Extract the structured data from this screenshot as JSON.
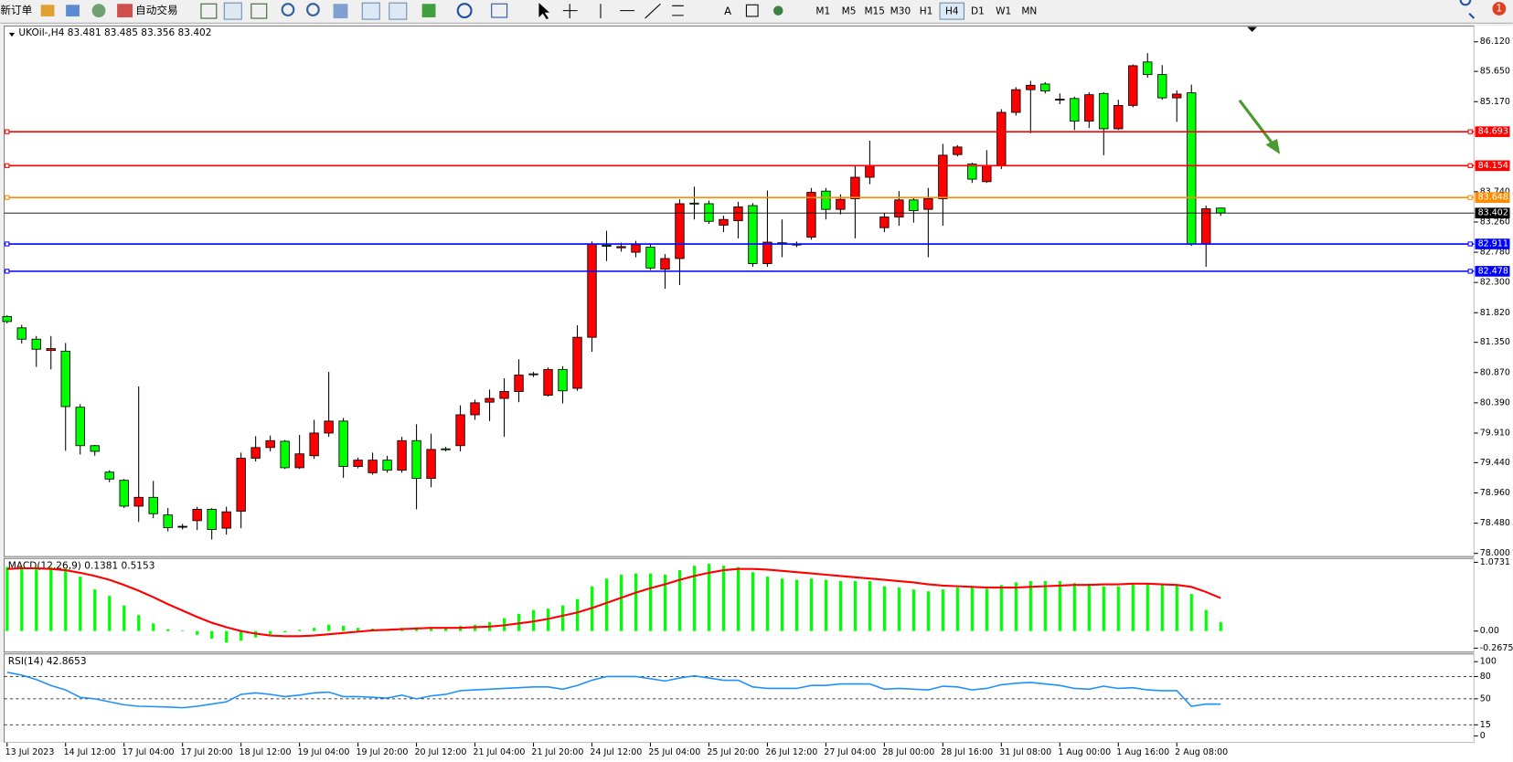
{
  "toolbar": {
    "new_order": "新订单",
    "auto_trading": "自动交易",
    "text_tool": "A",
    "timeframes": [
      "M1",
      "M5",
      "M15",
      "M30",
      "H1",
      "H4",
      "D1",
      "W1",
      "MN"
    ],
    "active_timeframe": "H4",
    "notifications": "1"
  },
  "chart_data": [
    {
      "type": "candlestick",
      "title": "UKOil-,H4  83.481 83.485 83.356 83.402",
      "categories": [
        "13 Jul 2023",
        null,
        null,
        null,
        "14 Jul 12:00",
        null,
        null,
        null,
        "17 Jul 04:00",
        null,
        null,
        null,
        "17 Jul 20:00",
        null,
        null,
        null,
        "18 Jul 12:00",
        null,
        null,
        null,
        "19 Jul 04:00",
        null,
        null,
        null,
        "19 Jul 20:00",
        null,
        null,
        null,
        "20 Jul 12:00",
        null,
        null,
        null,
        "21 Jul 04:00",
        null,
        null,
        null,
        "21 Jul 20:00",
        null,
        null,
        null,
        "24 Jul 12:00",
        null,
        null,
        null,
        "25 Jul 04:00",
        null,
        null,
        null,
        "25 Jul 20:00",
        null,
        null,
        null,
        "26 Jul 12:00",
        null,
        null,
        null,
        "27 Jul 04:00",
        null,
        null,
        null,
        "28 Jul 00:00",
        null,
        null,
        null,
        "28 Jul 16:00",
        null,
        null,
        null,
        "31 Jul 08:00",
        null,
        null,
        null,
        "1 Aug 00:00",
        null,
        null,
        null,
        "1 Aug 16:00",
        null,
        null,
        null,
        "2 Aug 08:00",
        null,
        null,
        null
      ],
      "open": [
        81.76,
        81.58,
        81.4,
        81.22,
        81.21,
        80.32,
        79.71,
        79.29,
        79.16,
        78.75,
        78.89,
        78.61,
        78.43,
        78.52,
        78.7,
        78.4,
        78.67,
        79.51,
        79.68,
        79.78,
        79.36,
        79.55,
        79.91,
        80.1,
        79.38,
        79.28,
        79.48,
        79.32,
        79.79,
        79.19,
        79.66,
        79.71,
        80.2,
        80.4,
        80.46,
        80.57,
        80.85,
        80.51,
        80.92,
        80.62,
        81.43,
        82.89,
        82.85,
        82.78,
        82.86,
        82.51,
        82.68,
        83.56,
        83.55,
        83.21,
        83.28,
        83.52,
        82.6,
        82.93,
        82.91,
        83.02,
        83.75,
        83.46,
        83.63,
        83.97,
        83.17,
        83.34,
        83.61,
        83.46,
        83.63,
        84.33,
        84.18,
        83.9,
        84.16,
        85.0,
        85.36,
        85.45,
        85.2,
        85.22,
        84.86,
        85.3,
        84.74,
        85.11,
        85.8,
        85.6,
        85.23,
        85.31,
        82.91,
        83.481
      ],
      "high": [
        81.78,
        81.63,
        81.45,
        81.45,
        81.34,
        80.37,
        79.72,
        79.32,
        79.18,
        80.65,
        79.15,
        78.72,
        78.47,
        78.74,
        78.72,
        78.74,
        79.6,
        79.86,
        79.87,
        79.8,
        79.88,
        80.12,
        80.88,
        80.15,
        79.52,
        79.6,
        79.55,
        79.85,
        80.05,
        79.9,
        79.69,
        80.35,
        80.44,
        80.6,
        80.78,
        81.08,
        80.88,
        80.95,
        80.97,
        81.62,
        82.95,
        83.12,
        82.93,
        82.96,
        82.91,
        82.75,
        83.62,
        83.82,
        83.6,
        83.36,
        83.58,
        83.56,
        83.76,
        83.3,
        82.95,
        83.8,
        83.8,
        83.7,
        84.15,
        84.55,
        83.4,
        83.75,
        83.65,
        83.8,
        84.5,
        84.48,
        84.2,
        84.4,
        85.05,
        85.4,
        85.5,
        85.48,
        85.3,
        85.25,
        85.32,
        85.32,
        85.2,
        85.76,
        85.94,
        85.75,
        85.35,
        85.44,
        83.52,
        83.485
      ],
      "low": [
        81.65,
        81.33,
        80.96,
        80.92,
        79.63,
        79.57,
        79.55,
        79.13,
        78.72,
        78.5,
        78.56,
        78.35,
        78.38,
        78.37,
        78.22,
        78.3,
        78.4,
        79.46,
        79.62,
        79.34,
        79.34,
        79.5,
        79.85,
        79.2,
        79.35,
        79.25,
        79.28,
        79.28,
        78.7,
        79.05,
        79.62,
        79.62,
        80.12,
        80.1,
        79.85,
        80.4,
        80.8,
        80.49,
        80.38,
        80.58,
        81.2,
        82.64,
        82.79,
        82.7,
        82.5,
        82.2,
        82.26,
        83.3,
        83.23,
        83.1,
        83.0,
        82.55,
        82.55,
        82.7,
        82.86,
        82.98,
        83.3,
        83.38,
        83.0,
        83.86,
        83.1,
        83.2,
        83.25,
        82.7,
        83.2,
        84.3,
        83.88,
        83.88,
        84.1,
        84.95,
        84.67,
        85.3,
        85.13,
        84.72,
        84.75,
        84.32,
        84.72,
        85.08,
        85.55,
        85.2,
        84.85,
        82.88,
        82.55,
        83.356
      ],
      "close": [
        81.68,
        81.4,
        81.24,
        81.25,
        80.33,
        79.71,
        79.62,
        79.18,
        78.75,
        78.89,
        78.63,
        78.41,
        78.43,
        78.7,
        78.38,
        78.66,
        79.51,
        79.68,
        79.79,
        79.36,
        79.58,
        79.91,
        80.1,
        79.38,
        79.48,
        79.48,
        79.32,
        79.79,
        79.19,
        79.65,
        79.65,
        80.2,
        80.39,
        80.46,
        80.57,
        80.83,
        80.84,
        80.92,
        80.58,
        81.43,
        82.91,
        82.88,
        82.87,
        82.9,
        82.53,
        82.68,
        83.55,
        83.55,
        83.27,
        83.3,
        83.5,
        82.6,
        82.94,
        82.92,
        82.9,
        83.73,
        83.46,
        83.62,
        83.97,
        84.16,
        83.34,
        83.61,
        83.44,
        83.63,
        84.32,
        84.45,
        83.94,
        84.16,
        85.0,
        85.36,
        85.43,
        85.34,
        85.21,
        84.86,
        85.28,
        84.74,
        85.11,
        85.74,
        85.6,
        85.23,
        85.29,
        82.91,
        83.47,
        83.402
      ],
      "up_color": "#ff0000",
      "down_color": "#00ff00",
      "ylim": [
        77.95,
        86.37
      ],
      "yticks": [
        {
          "value": 86.12,
          "label": "86.120"
        },
        {
          "value": 85.65,
          "label": "85.650"
        },
        {
          "value": 85.17,
          "label": "85.170"
        },
        {
          "value": 83.74,
          "label": "83.740"
        },
        {
          "value": 83.26,
          "label": "83.260"
        },
        {
          "value": 82.78,
          "label": "82.780"
        },
        {
          "value": 82.3,
          "label": "82.300"
        },
        {
          "value": 81.82,
          "label": "81.820"
        },
        {
          "value": 81.35,
          "label": "81.350"
        },
        {
          "value": 80.87,
          "label": "80.870"
        },
        {
          "value": 80.39,
          "label": "80.390"
        },
        {
          "value": 79.91,
          "label": "79.910"
        },
        {
          "value": 79.44,
          "label": "79.440"
        },
        {
          "value": 78.96,
          "label": "78.960"
        },
        {
          "value": 78.48,
          "label": "78.480"
        },
        {
          "value": 78,
          "label": "78.000"
        }
      ],
      "hlines": [
        {
          "value": 84.693,
          "color": "#ff0000"
        },
        {
          "value": 84.154,
          "color": "#ff0000"
        },
        {
          "value": 83.648,
          "color": "#ff8c00"
        },
        {
          "value": 82.911,
          "color": "#0000ff"
        },
        {
          "value": 82.478,
          "color": "#0000ff"
        }
      ],
      "current": {
        "value": 83.402,
        "color": "#000000"
      }
    },
    {
      "type": "macd",
      "title": "MACD(12,26,9) 0.1381 0.5153",
      "histogram": {
        "color": "#00ff00",
        "values": [
          1.0,
          1.0,
          1.0,
          1.0,
          0.98,
          0.85,
          0.65,
          0.55,
          0.4,
          0.25,
          0.12,
          0.03,
          0.01,
          -0.06,
          -0.12,
          -0.18,
          -0.15,
          -0.1,
          -0.05,
          -0.02,
          0.02,
          0.05,
          0.1,
          0.08,
          0.05,
          0.04,
          0.03,
          0.05,
          0.06,
          0.05,
          0.06,
          0.08,
          0.1,
          0.14,
          0.2,
          0.27,
          0.33,
          0.35,
          0.4,
          0.5,
          0.7,
          0.82,
          0.88,
          0.9,
          0.9,
          0.88,
          0.95,
          1.02,
          1.05,
          1.02,
          1.0,
          0.92,
          0.85,
          0.82,
          0.8,
          0.82,
          0.8,
          0.78,
          0.78,
          0.78,
          0.7,
          0.68,
          0.65,
          0.62,
          0.65,
          0.68,
          0.68,
          0.66,
          0.72,
          0.76,
          0.78,
          0.78,
          0.78,
          0.75,
          0.74,
          0.7,
          0.7,
          0.74,
          0.75,
          0.74,
          0.72,
          0.58,
          0.33,
          0.1381
        ]
      },
      "signal": {
        "color": "#ff0000",
        "values": [
          0.97,
          0.98,
          0.98,
          0.97,
          0.95,
          0.91,
          0.86,
          0.8,
          0.72,
          0.63,
          0.53,
          0.42,
          0.32,
          0.22,
          0.13,
          0.06,
          0.0,
          -0.04,
          -0.07,
          -0.08,
          -0.08,
          -0.07,
          -0.05,
          -0.03,
          -0.01,
          0.01,
          0.02,
          0.03,
          0.04,
          0.05,
          0.05,
          0.05,
          0.06,
          0.07,
          0.09,
          0.12,
          0.15,
          0.19,
          0.24,
          0.29,
          0.36,
          0.44,
          0.52,
          0.6,
          0.67,
          0.73,
          0.8,
          0.86,
          0.91,
          0.95,
          0.97,
          0.97,
          0.96,
          0.94,
          0.92,
          0.9,
          0.88,
          0.86,
          0.84,
          0.82,
          0.8,
          0.78,
          0.76,
          0.73,
          0.71,
          0.7,
          0.69,
          0.68,
          0.68,
          0.68,
          0.69,
          0.7,
          0.71,
          0.72,
          0.72,
          0.73,
          0.73,
          0.74,
          0.74,
          0.73,
          0.72,
          0.69,
          0.61,
          0.5153
        ]
      },
      "ylim": [
        -0.2675,
        1.0731
      ],
      "yticks": [
        1.0731,
        {
          "value": 0,
          "label": "0.00"
        },
        -0.2675
      ]
    },
    {
      "type": "rsi",
      "title": "RSI(14) 42.8653",
      "color": "#1e90ff",
      "values": [
        85.7,
        82,
        76,
        68,
        62,
        52,
        50,
        46,
        42,
        40,
        39.5,
        39,
        38,
        40,
        43,
        46,
        56,
        58,
        56,
        53,
        55,
        58,
        59,
        53,
        53,
        52,
        51,
        55,
        50,
        54,
        56,
        61,
        62,
        63,
        64,
        65,
        66,
        66,
        63,
        68,
        75,
        80,
        80,
        80,
        77,
        74,
        78,
        81,
        78,
        75,
        75,
        66,
        64,
        64,
        64,
        68,
        68,
        70,
        70,
        70,
        63,
        64,
        63,
        62,
        67,
        66,
        62,
        64,
        69,
        71,
        72,
        70,
        68,
        64,
        63,
        67,
        64,
        65,
        62,
        61,
        61,
        40,
        43,
        42.8653
      ],
      "ylim": [
        0,
        100
      ],
      "yticks": [
        100,
        80,
        50,
        15,
        0
      ]
    }
  ]
}
